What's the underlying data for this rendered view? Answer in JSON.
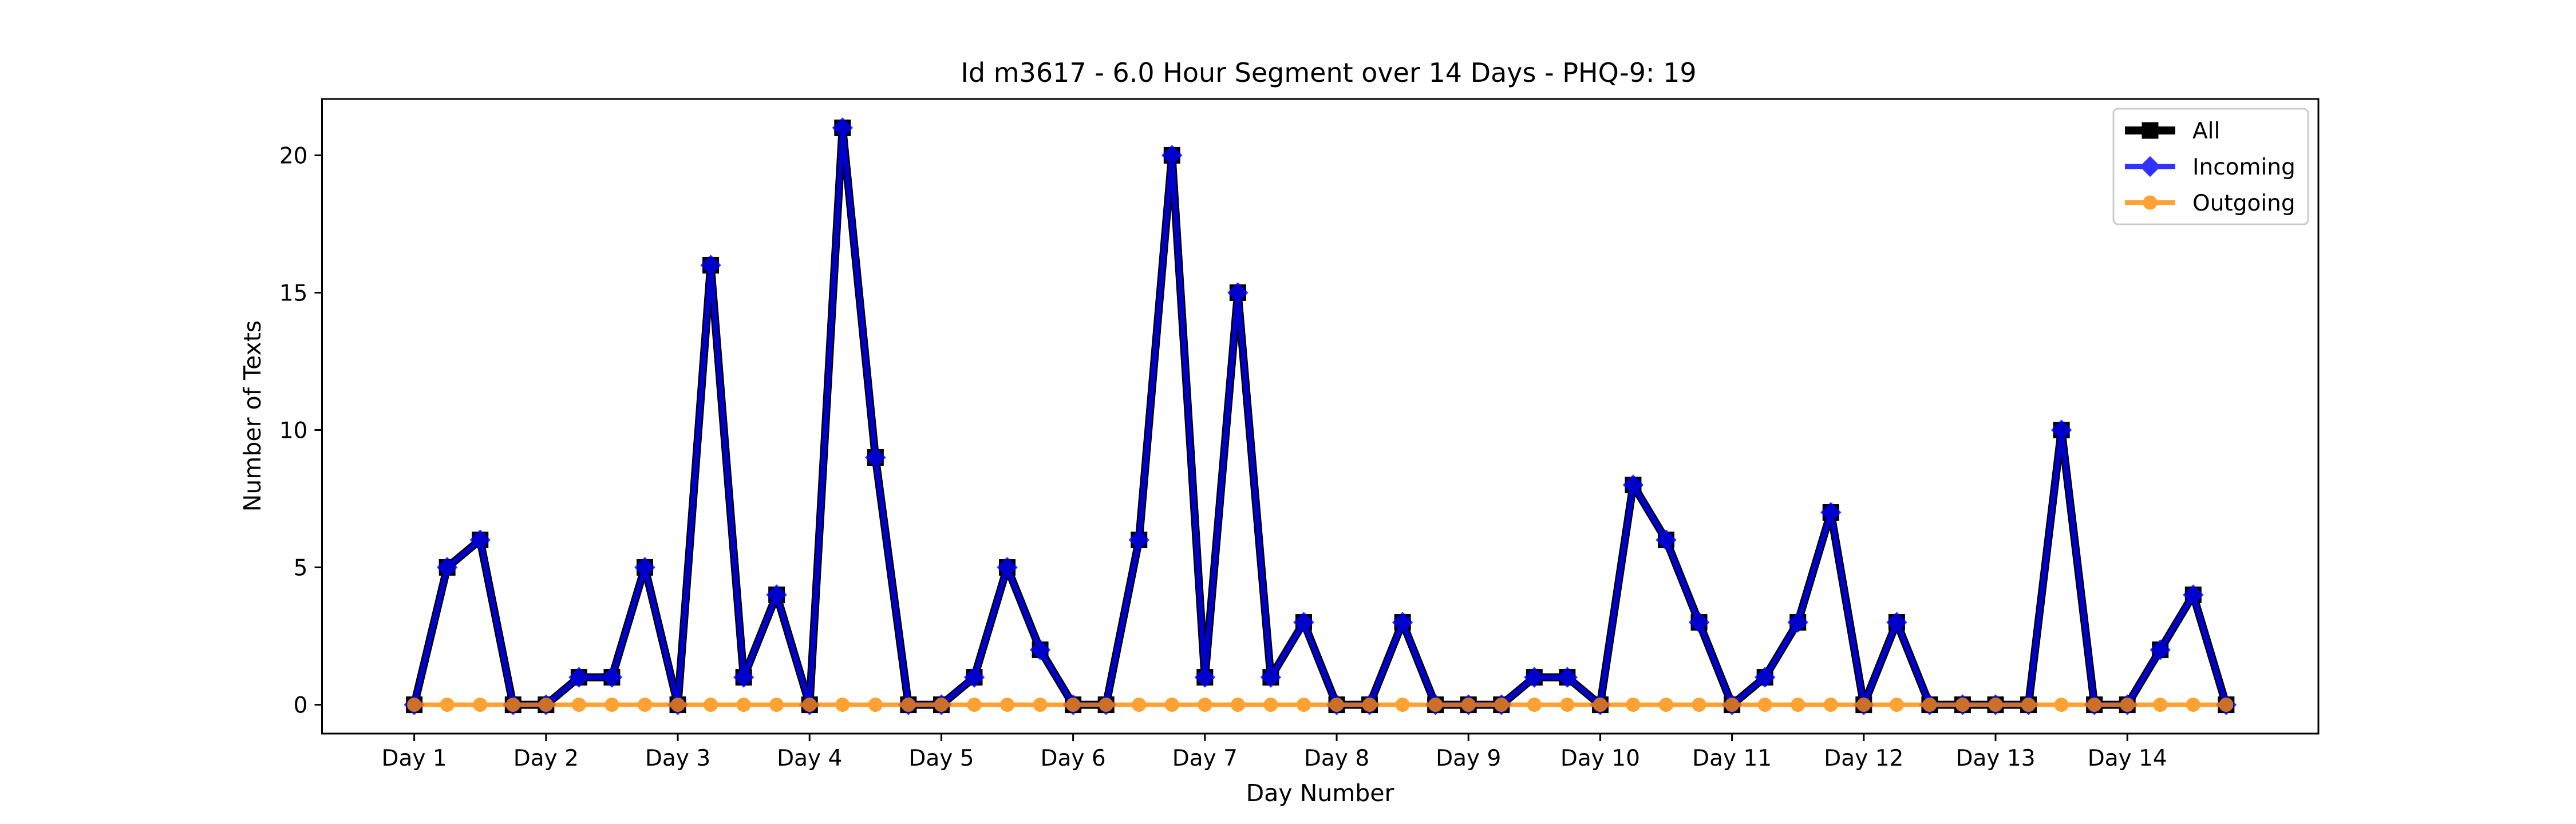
{
  "chart_data": {
    "type": "line",
    "title": "Id m3617 - 6.0 Hour Segment over 14 Days - PHQ-9: 19",
    "xlabel": "Day Number",
    "ylabel": "Number of Texts",
    "x_ticks": [
      "Day 1",
      "Day 2",
      "Day 3",
      "Day 4",
      "Day 5",
      "Day 6",
      "Day 7",
      "Day 8",
      "Day 9",
      "Day 10",
      "Day 11",
      "Day 12",
      "Day 13",
      "Day 14"
    ],
    "y_ticks": [
      0,
      5,
      10,
      15,
      20
    ],
    "ylim": [
      -1.05,
      22.05
    ],
    "xlim": [
      -2.8,
      57.8
    ],
    "grid": false,
    "legend_position": "top-right",
    "series": [
      {
        "name": "All",
        "color": "#000000",
        "marker": "square",
        "values": [
          0,
          5,
          6,
          0,
          0,
          1,
          1,
          5,
          0,
          16,
          1,
          4,
          0,
          21,
          9,
          0,
          0,
          1,
          5,
          2,
          0,
          0,
          6,
          20,
          1,
          15,
          1,
          3,
          0,
          0,
          3,
          0,
          0,
          0,
          1,
          1,
          0,
          8,
          6,
          3,
          0,
          1,
          3,
          7,
          0,
          3,
          0,
          0,
          0,
          0,
          10,
          0,
          0,
          2,
          4,
          0
        ]
      },
      {
        "name": "Incoming",
        "color": "#0000ff",
        "marker": "diamond",
        "values": [
          0,
          5,
          6,
          0,
          0,
          1,
          1,
          5,
          0,
          16,
          1,
          4,
          0,
          21,
          9,
          0,
          0,
          1,
          5,
          2,
          0,
          0,
          6,
          20,
          1,
          15,
          1,
          3,
          0,
          0,
          3,
          0,
          0,
          0,
          1,
          1,
          0,
          8,
          6,
          3,
          0,
          1,
          3,
          7,
          0,
          3,
          0,
          0,
          0,
          0,
          10,
          0,
          0,
          2,
          4,
          0
        ]
      },
      {
        "name": "Outgoing",
        "color": "#ff8c00",
        "marker": "circle",
        "values": [
          0,
          0,
          0,
          0,
          0,
          0,
          0,
          0,
          0,
          0,
          0,
          0,
          0,
          0,
          0,
          0,
          0,
          0,
          0,
          0,
          0,
          0,
          0,
          0,
          0,
          0,
          0,
          0,
          0,
          0,
          0,
          0,
          0,
          0,
          0,
          0,
          0,
          0,
          0,
          0,
          0,
          0,
          0,
          0,
          0,
          0,
          0,
          0,
          0,
          0,
          0,
          0,
          0,
          0,
          0,
          0
        ]
      }
    ]
  }
}
